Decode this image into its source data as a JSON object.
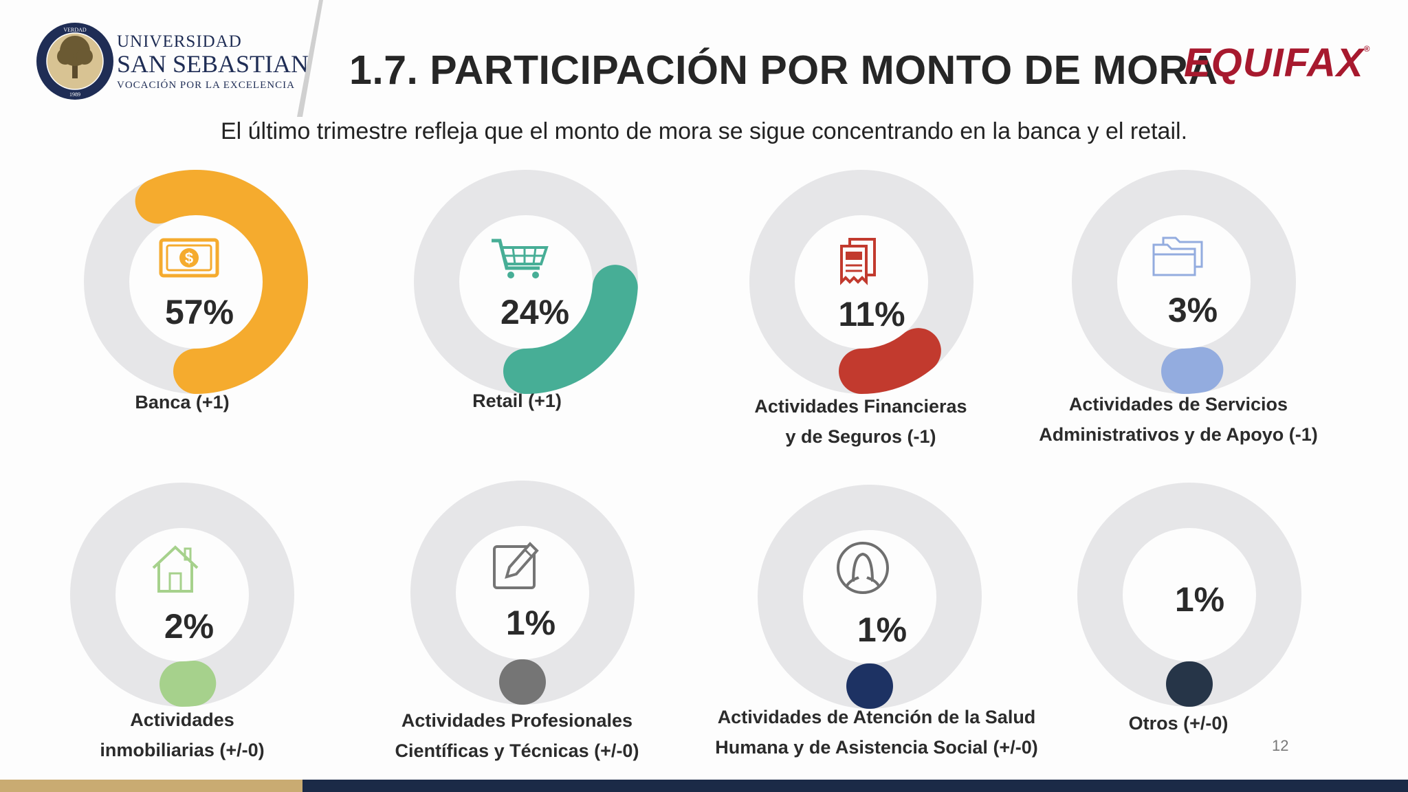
{
  "header": {
    "university": {
      "line1": "UNIVERSIDAD",
      "line2": "SAN SEBASTIAN",
      "line3": "VOCACIÓN POR LA EXCELENCIA",
      "seal_text": "VERDAD · VIRTUD · RAZON · 1989"
    },
    "title": "1.7. PARTICIPACIÓN POR MONTO DE MORA",
    "brand": "EQUIFAX",
    "brand_mark": "®"
  },
  "subtitle": "El último trimestre refleja que el monto de mora se sigue concentrando en la banca y el retail.",
  "colors": {
    "track": "#e6e6e8",
    "banca": "#f5ab2e",
    "retail": "#47ae96",
    "financieras": "#c23a2e",
    "administrativos": "#93acdf",
    "inmobiliarias": "#a6d18c",
    "profesionales": "#757575",
    "salud": "#1d3263",
    "otros": "#263548"
  },
  "segments": [
    {
      "id": "banca",
      "percent_text": "57%",
      "share": 0.57,
      "label_lines": [
        "Banca (+1)"
      ],
      "icon": "money-bill-icon",
      "color": "#f5ab2e"
    },
    {
      "id": "retail",
      "percent_text": "24%",
      "share": 0.24,
      "label_lines": [
        "Retail (+1)"
      ],
      "icon": "shopping-cart-icon",
      "color": "#47ae96"
    },
    {
      "id": "financieras",
      "percent_text": "11%",
      "share": 0.11,
      "label_lines": [
        "Actividades Financieras",
        "y de Seguros (-1)"
      ],
      "icon": "receipt-icon",
      "color": "#c23a2e"
    },
    {
      "id": "administrativos",
      "percent_text": "3%",
      "share": 0.03,
      "label_lines": [
        "Actividades de Servicios",
        "Administrativos y de Apoyo (-1)"
      ],
      "icon": "folders-icon",
      "color": "#93acdf"
    },
    {
      "id": "inmobiliarias",
      "percent_text": "2%",
      "share": 0.02,
      "label_lines": [
        "Actividades",
        "inmobiliarias (+/-0)"
      ],
      "icon": "house-icon",
      "color": "#a6d18c"
    },
    {
      "id": "profesionales",
      "percent_text": "1%",
      "share": 0.01,
      "label_lines": [
        "Actividades Profesionales",
        "Científicas y Técnicas  (+/-0)"
      ],
      "icon": "edit-pencil-icon",
      "color": "#757575"
    },
    {
      "id": "salud",
      "percent_text": "1%",
      "share": 0.01,
      "label_lines": [
        "Actividades de Atención de la Salud",
        "Humana y de Asistencia Social (+/-0)"
      ],
      "icon": "person-icon",
      "color": "#1d3263"
    },
    {
      "id": "otros",
      "percent_text": "1%",
      "share": 0.01,
      "label_lines": [
        "Otros (+/-0)"
      ],
      "icon": "",
      "color": "#263548"
    }
  ],
  "page_number": "12"
}
